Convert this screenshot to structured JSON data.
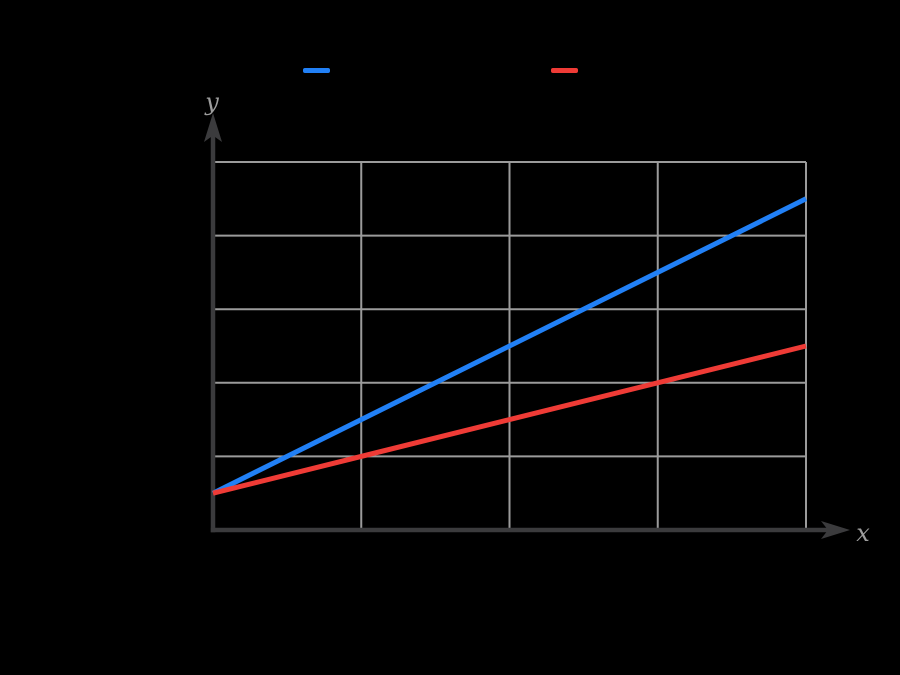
{
  "figure": {
    "background_color": "#000000",
    "axis_color": "#3b3b3d",
    "grid_color": "#9b9b9b",
    "axis_label_color": "#9d9d9d"
  },
  "legend": {
    "position": "top",
    "items": [
      {
        "swatch_color": "#2180f6",
        "label": ""
      },
      {
        "swatch_color": "#ef3b36",
        "label": ""
      }
    ]
  },
  "chart_data": {
    "type": "line",
    "title": "",
    "xlabel": "x",
    "ylabel": "y",
    "xlim": [
      0,
      4
    ],
    "ylim": [
      0,
      5
    ],
    "grid": true,
    "tick_labels_visible": false,
    "x_gridline_positions": [
      1,
      2,
      3,
      4
    ],
    "y_gridline_positions": [
      1,
      2,
      3,
      4,
      5
    ],
    "legend_position": "top",
    "series": [
      {
        "name": "blue-line",
        "color": "#2180f6",
        "points": [
          [
            0,
            0.5
          ],
          [
            4,
            4.5
          ]
        ],
        "legend_label": ""
      },
      {
        "name": "red-line",
        "color": "#ef3b36",
        "points": [
          [
            0,
            0.5
          ],
          [
            4,
            2.5
          ]
        ],
        "legend_label": ""
      }
    ]
  }
}
